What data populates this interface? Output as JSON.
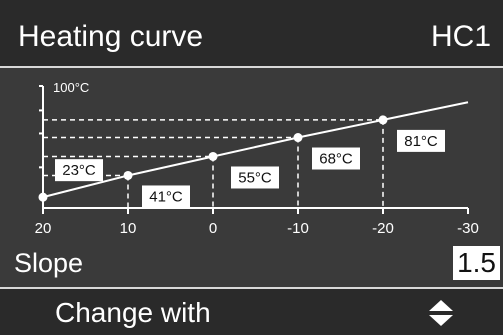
{
  "header": {
    "title": "Heating curve",
    "circuit": "HC1"
  },
  "chart_data": {
    "type": "line",
    "title": "",
    "xlabel": "",
    "ylabel": "100°C",
    "x_ticks": [
      "20",
      "10",
      "0",
      "-10",
      "-20",
      "-30"
    ],
    "x_tick_values": [
      20,
      10,
      0,
      -10,
      -20,
      -30
    ],
    "xlim": [
      20,
      -30
    ],
    "ylim": [
      10,
      100
    ],
    "series": [
      {
        "x": [
          20,
          10,
          0,
          -10,
          -20,
          -30
        ],
        "y": [
          18,
          34,
          48,
          62,
          75,
          88
        ]
      }
    ],
    "points": [
      {
        "x": 20,
        "y": 23,
        "label": "23°C"
      },
      {
        "x": 10,
        "y": 41,
        "label": "41°C"
      },
      {
        "x": 0,
        "y": 55,
        "label": "55°C"
      },
      {
        "x": -10,
        "y": 68,
        "label": "68°C"
      },
      {
        "x": -20,
        "y": 81,
        "label": "81°C"
      }
    ]
  },
  "slope": {
    "label": "Slope",
    "value": "1.5"
  },
  "footer": {
    "label": "Change with",
    "icon": "up-down-arrows-icon"
  },
  "colors": {
    "background": "#3a3a3a",
    "header_background": "#2a2a2a",
    "foreground": "#ffffff"
  }
}
